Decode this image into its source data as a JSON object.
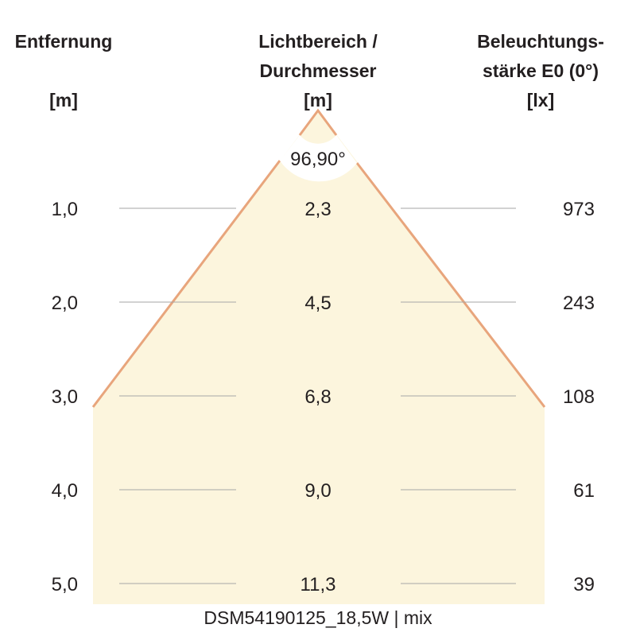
{
  "headers": {
    "distance": {
      "line1": "Entfernung",
      "unit": "[m]"
    },
    "diameter": {
      "line1": "Lichtbereich /",
      "line2": "Durchmesser",
      "unit": "[m]"
    },
    "illuminance": {
      "line1": "Beleuchtungs-",
      "line2": "stärke E0 (0°)",
      "unit": "[lx]"
    }
  },
  "beam_angle": "96,90°",
  "rows": [
    {
      "distance": "1,0",
      "diameter": "2,3",
      "illuminance": "973"
    },
    {
      "distance": "2,0",
      "diameter": "4,5",
      "illuminance": "243"
    },
    {
      "distance": "3,0",
      "diameter": "6,8",
      "illuminance": "108"
    },
    {
      "distance": "4,0",
      "diameter": "9,0",
      "illuminance": "61"
    },
    {
      "distance": "5,0",
      "diameter": "11,3",
      "illuminance": "39"
    }
  ],
  "caption": "DSM54190125_18,5W | mix",
  "colors": {
    "beam_fill": "#fcf5dd",
    "beam_edge": "#e8a57c",
    "grid_line": "#a6a6a6",
    "text": "#231f20"
  }
}
